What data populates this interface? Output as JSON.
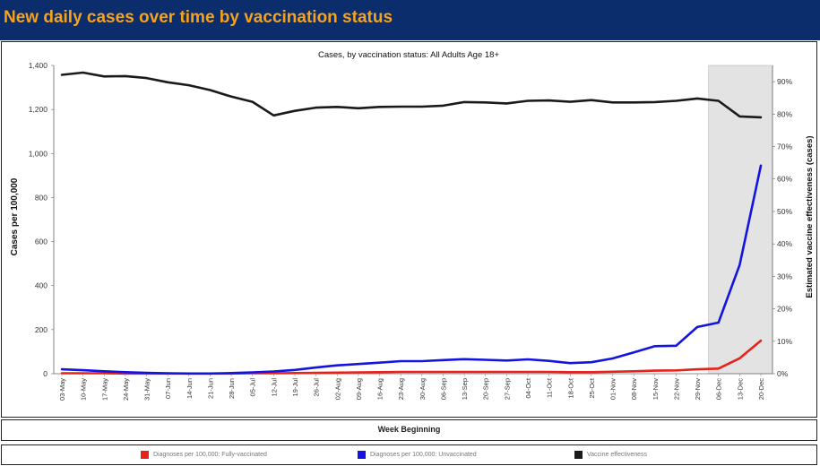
{
  "header": {
    "title": "New daily cases over time by vaccination status"
  },
  "chart_data": {
    "type": "line",
    "title": "Cases, by vaccination status: All Adults Age 18+",
    "xlabel": "Week Beginning",
    "ylabel": "Cases per 100,000",
    "y2label": "Estimated vaccine effectiveness (cases)",
    "ylim": [
      0,
      1400
    ],
    "y2lim": [
      0,
      0.95
    ],
    "yticks": [
      "0",
      "200",
      "400",
      "600",
      "800",
      "1,000",
      "1,200",
      "1,400"
    ],
    "y2ticks": [
      "0%",
      "10%",
      "20%",
      "30%",
      "40%",
      "50%",
      "60%",
      "70%",
      "80%",
      "90%"
    ],
    "x": [
      "03-May",
      "10-May",
      "17-May",
      "24-May",
      "31-May",
      "07-Jun",
      "14-Jun",
      "21-Jun",
      "28-Jun",
      "05-Jul",
      "12-Jul",
      "19-Jul",
      "26-Jul",
      "02-Aug",
      "09-Aug",
      "16-Aug",
      "23-Aug",
      "30-Aug",
      "06-Sep",
      "13-Sep",
      "20-Sep",
      "27-Sep",
      "04-Oct",
      "11-Oct",
      "18-Oct",
      "25-Oct",
      "01-Nov",
      "08-Nov",
      "15-Nov",
      "22-Nov",
      "29-Nov",
      "06-Dec",
      "13-Dec",
      "20-Dec"
    ],
    "shaded_region": [
      "06-Dec",
      "20-Dec"
    ],
    "series": [
      {
        "name": "Diagnoses per 100,000: Fully-vaccinated",
        "color": "#e8221b",
        "axis": "left",
        "values": [
          2,
          2,
          2,
          1,
          1,
          1,
          1,
          1,
          1,
          2,
          2,
          3,
          4,
          5,
          6,
          7,
          8,
          8,
          8,
          8,
          8,
          8,
          8,
          8,
          7,
          7,
          9,
          11,
          14,
          15,
          20,
          23,
          70,
          150
        ]
      },
      {
        "name": "Diagnoses per 100,000: Unvaccinated",
        "color": "#1414e0",
        "axis": "left",
        "values": [
          20,
          16,
          11,
          7,
          4,
          2,
          1,
          1,
          3,
          6,
          10,
          17,
          28,
          38,
          44,
          50,
          57,
          57,
          62,
          66,
          63,
          60,
          65,
          58,
          48,
          52,
          69,
          97,
          125,
          127,
          212,
          232,
          495,
          945
        ]
      },
      {
        "name": "Vaccine effectiveness",
        "color": "#1a1a1a",
        "axis": "right",
        "values": [
          0.921,
          0.928,
          0.916,
          0.917,
          0.911,
          0.898,
          0.889,
          0.874,
          0.854,
          0.838,
          0.796,
          0.81,
          0.82,
          0.822,
          0.818,
          0.822,
          0.823,
          0.823,
          0.826,
          0.837,
          0.836,
          0.833,
          0.841,
          0.842,
          0.838,
          0.843,
          0.836,
          0.836,
          0.837,
          0.841,
          0.848,
          0.841,
          0.793,
          0.79
        ]
      }
    ]
  }
}
